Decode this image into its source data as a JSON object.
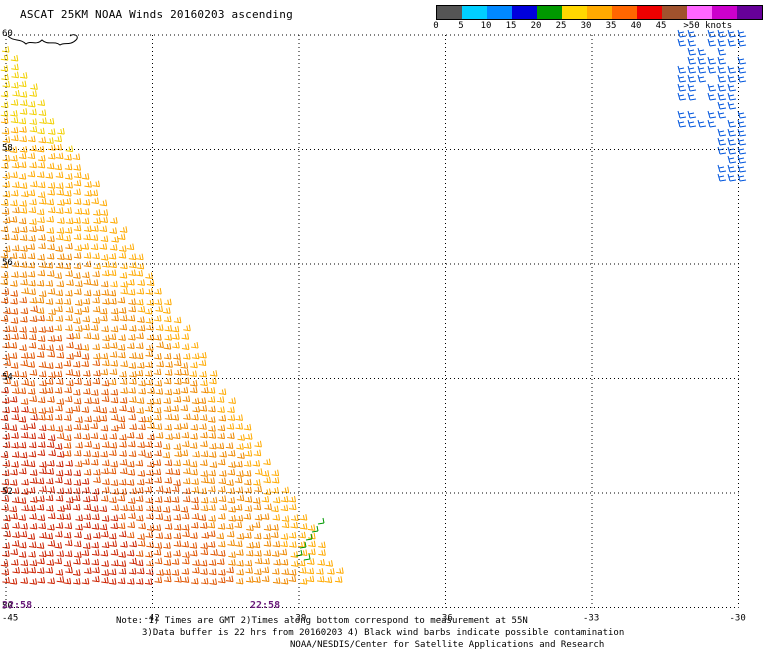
{
  "title": "ASCAT 25KM NOAA Winds 20160203 ascending",
  "legend": {
    "colors": [
      "#555555",
      "#00cfff",
      "#0088ff",
      "#0000dd",
      "#009900",
      "#ffd700",
      "#ffaa00",
      "#ff6600",
      "#ee0000",
      "#a0522d",
      "#ff66ff",
      "#cc00cc",
      "#660099"
    ],
    "labels": [
      "0",
      "5",
      "10",
      "15",
      "20",
      "25",
      "30",
      "35",
      "40",
      "45",
      ">50 knots"
    ]
  },
  "lat_labels": [
    "60",
    "58",
    "56",
    "54",
    "52",
    "50"
  ],
  "lon_labels": [
    "-45",
    "-42",
    "-39",
    "-36",
    "-33",
    "-30"
  ],
  "times": [
    "22:58",
    "22:58"
  ],
  "notes": [
    "Note: 1) Times are GMT 2)Times along bottom correspond to measurement at 55N",
    "3)Data buffer is 22 hrs from 20160203 4) Black wind barbs indicate possible contamination",
    "NOAA/NESDIS/Center for Satellite Applications and Research"
  ]
}
